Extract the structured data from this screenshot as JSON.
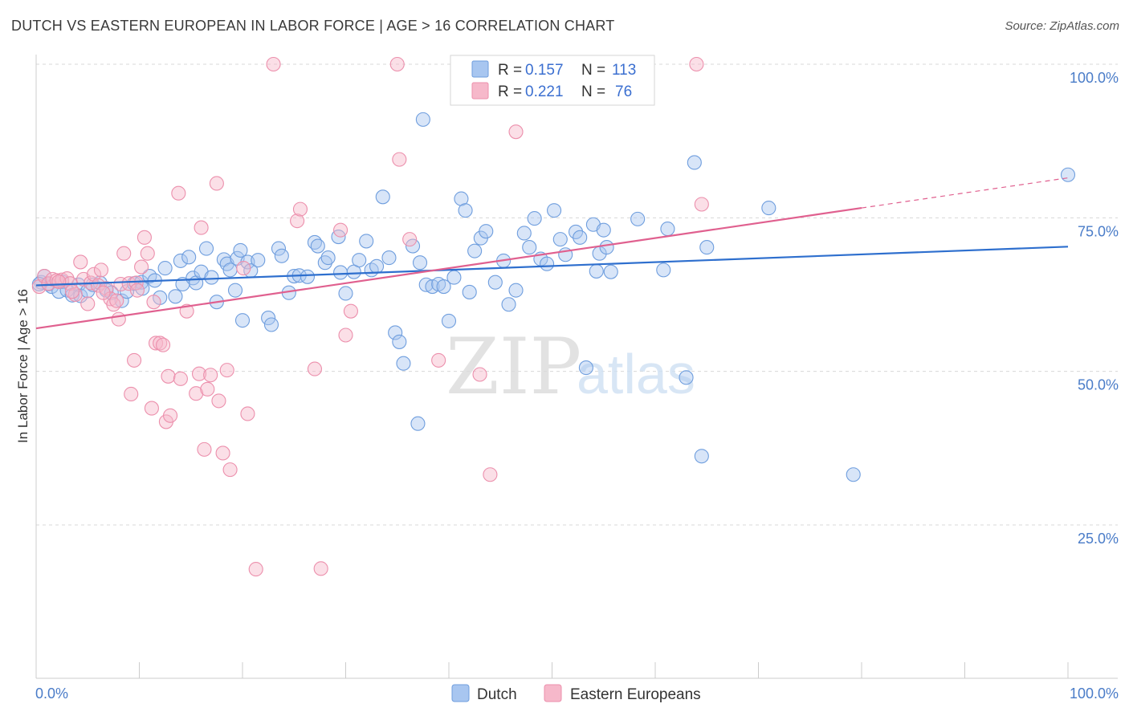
{
  "header": {
    "title": "DUTCH VS EASTERN EUROPEAN IN LABOR FORCE | AGE > 16 CORRELATION CHART",
    "source": "Source: ZipAtlas.com"
  },
  "watermark": {
    "zip": "ZIP",
    "atlas": "atlas"
  },
  "colors": {
    "dutch_fill": "#a8c6f0",
    "dutch_stroke": "#6f9ede",
    "dutch_line": "#2e6fce",
    "ee_fill": "#f6b8ca",
    "ee_stroke": "#ec8fac",
    "ee_line": "#e0608f",
    "tick_label": "#4a7cc8",
    "grid": "#d8d8d8"
  },
  "legend": {
    "r_label": "R =",
    "n_label": "N =",
    "rows": [
      {
        "series": "Dutch",
        "r": "0.157",
        "n": "113"
      },
      {
        "series": "Eastern Europeans",
        "r": "0.221",
        "n": "76"
      }
    ]
  },
  "chart_data": {
    "type": "scatter",
    "title": "DUTCH VS EASTERN EUROPEAN IN LABOR FORCE | AGE > 16 CORRELATION CHART",
    "xlabel": "",
    "ylabel": "In Labor Force | Age > 16",
    "xlim": [
      0,
      100
    ],
    "ylim": [
      0,
      102
    ],
    "x_tick_labels": [
      "0.0%",
      "100.0%"
    ],
    "y_ticks": [
      {
        "value": 100,
        "label": "100.0%"
      },
      {
        "value": 75,
        "label": "75.0%"
      },
      {
        "value": 50,
        "label": "50.0%"
      },
      {
        "value": 25,
        "label": "25.0%"
      }
    ],
    "grid": true,
    "legend_position": "bottom-center",
    "series": [
      {
        "name": "Dutch",
        "regression": {
          "x0": 0,
          "y0": 64.0,
          "x1": 100,
          "y1": 70.3,
          "dashed_from": null
        },
        "points": [
          [
            0.5,
            64.5
          ],
          [
            0.8,
            65.5
          ],
          [
            1.2,
            64.2
          ],
          [
            1.5,
            63.8
          ],
          [
            2.2,
            63.0
          ],
          [
            2.5,
            64.6
          ],
          [
            3.0,
            63.2
          ],
          [
            3.5,
            62.4
          ],
          [
            4.1,
            64.1
          ],
          [
            4.3,
            62.3
          ],
          [
            5.0,
            63.1
          ],
          [
            5.5,
            64.1
          ],
          [
            6.2,
            64.4
          ],
          [
            6.8,
            63.2
          ],
          [
            7.3,
            62.8
          ],
          [
            8.3,
            61.5
          ],
          [
            8.8,
            63.0
          ],
          [
            9.5,
            64.3
          ],
          [
            10.2,
            64.5
          ],
          [
            10.3,
            63.5
          ],
          [
            11.0,
            65.5
          ],
          [
            11.5,
            64.8
          ],
          [
            12.0,
            62.0
          ],
          [
            12.5,
            66.8
          ],
          [
            13.5,
            62.2
          ],
          [
            14.0,
            68.0
          ],
          [
            14.2,
            64.2
          ],
          [
            14.8,
            68.6
          ],
          [
            15.2,
            65.2
          ],
          [
            15.5,
            64.4
          ],
          [
            16.0,
            66.2
          ],
          [
            16.5,
            70.0
          ],
          [
            17.0,
            65.3
          ],
          [
            17.5,
            61.3
          ],
          [
            18.2,
            68.2
          ],
          [
            18.5,
            67.5
          ],
          [
            18.8,
            66.5
          ],
          [
            19.3,
            63.2
          ],
          [
            19.5,
            68.4
          ],
          [
            19.8,
            69.7
          ],
          [
            20.0,
            58.3
          ],
          [
            20.5,
            67.8
          ],
          [
            20.8,
            66.4
          ],
          [
            21.5,
            68.1
          ],
          [
            22.5,
            58.7
          ],
          [
            22.8,
            57.6
          ],
          [
            23.5,
            70.0
          ],
          [
            23.8,
            68.8
          ],
          [
            24.5,
            62.8
          ],
          [
            25.0,
            65.5
          ],
          [
            25.5,
            65.6
          ],
          [
            26.3,
            65.4
          ],
          [
            27.0,
            71.0
          ],
          [
            27.3,
            70.4
          ],
          [
            28.0,
            67.7
          ],
          [
            28.3,
            68.5
          ],
          [
            29.3,
            71.9
          ],
          [
            29.5,
            66.1
          ],
          [
            30.0,
            62.7
          ],
          [
            30.8,
            66.2
          ],
          [
            31.3,
            68.1
          ],
          [
            32.0,
            71.2
          ],
          [
            32.5,
            66.5
          ],
          [
            33.0,
            67.1
          ],
          [
            33.6,
            78.4
          ],
          [
            34.2,
            68.5
          ],
          [
            34.8,
            56.3
          ],
          [
            35.2,
            54.8
          ],
          [
            35.6,
            51.3
          ],
          [
            36.5,
            70.4
          ],
          [
            37.0,
            41.5
          ],
          [
            37.2,
            67.7
          ],
          [
            37.8,
            64.1
          ],
          [
            38.4,
            63.8
          ],
          [
            39.0,
            64.2
          ],
          [
            39.5,
            63.8
          ],
          [
            37.5,
            91.0
          ],
          [
            40.0,
            58.2
          ],
          [
            40.5,
            65.3
          ],
          [
            41.2,
            78.1
          ],
          [
            41.6,
            76.2
          ],
          [
            42.0,
            62.9
          ],
          [
            42.5,
            69.6
          ],
          [
            43.1,
            71.7
          ],
          [
            43.6,
            72.8
          ],
          [
            44.5,
            64.5
          ],
          [
            45.3,
            68.0
          ],
          [
            45.8,
            60.9
          ],
          [
            46.5,
            63.2
          ],
          [
            47.3,
            72.5
          ],
          [
            47.8,
            70.2
          ],
          [
            48.3,
            74.9
          ],
          [
            48.9,
            68.3
          ],
          [
            49.5,
            67.5
          ],
          [
            50.2,
            76.2
          ],
          [
            50.8,
            71.5
          ],
          [
            51.3,
            69.0
          ],
          [
            52.3,
            72.7
          ],
          [
            52.7,
            71.8
          ],
          [
            53.3,
            50.6
          ],
          [
            54.0,
            73.9
          ],
          [
            54.3,
            66.3
          ],
          [
            54.6,
            69.2
          ],
          [
            55.0,
            73.0
          ],
          [
            55.3,
            70.2
          ],
          [
            55.7,
            66.2
          ],
          [
            58.3,
            74.8
          ],
          [
            60.8,
            66.5
          ],
          [
            61.2,
            73.2
          ],
          [
            63.0,
            49.0
          ],
          [
            63.8,
            84.0
          ],
          [
            64.5,
            36.2
          ],
          [
            65.0,
            70.2
          ],
          [
            71.0,
            76.6
          ],
          [
            79.2,
            33.2
          ],
          [
            100.0,
            82.0
          ],
          [
            0.3,
            64.2
          ]
        ]
      },
      {
        "name": "Eastern Europeans",
        "regression": {
          "x0": 0,
          "y0": 57.0,
          "x1": 100,
          "y1": 81.5,
          "dashed_from": 80
        },
        "points": [
          [
            0.3,
            63.8
          ],
          [
            0.8,
            65.5
          ],
          [
            1.2,
            64.3
          ],
          [
            1.6,
            65.0
          ],
          [
            2.0,
            64.8
          ],
          [
            2.5,
            64.9
          ],
          [
            3.0,
            65.1
          ],
          [
            3.3,
            64.3
          ],
          [
            3.8,
            62.5
          ],
          [
            4.3,
            67.8
          ],
          [
            4.6,
            65.0
          ],
          [
            5.0,
            61.0
          ],
          [
            5.3,
            64.4
          ],
          [
            5.6,
            65.8
          ],
          [
            6.0,
            64.0
          ],
          [
            6.3,
            66.5
          ],
          [
            6.8,
            63.5
          ],
          [
            7.2,
            61.8
          ],
          [
            7.5,
            60.9
          ],
          [
            7.8,
            61.5
          ],
          [
            8.0,
            58.5
          ],
          [
            8.2,
            64.2
          ],
          [
            8.5,
            69.2
          ],
          [
            9.0,
            64.3
          ],
          [
            9.2,
            46.3
          ],
          [
            9.5,
            51.8
          ],
          [
            9.7,
            64.4
          ],
          [
            10.2,
            67.0
          ],
          [
            10.5,
            71.8
          ],
          [
            10.8,
            69.2
          ],
          [
            11.2,
            44.0
          ],
          [
            11.4,
            61.3
          ],
          [
            11.6,
            54.6
          ],
          [
            12.0,
            54.6
          ],
          [
            12.3,
            54.3
          ],
          [
            12.6,
            41.8
          ],
          [
            12.8,
            49.2
          ],
          [
            13.0,
            42.8
          ],
          [
            13.8,
            79.0
          ],
          [
            14.0,
            48.8
          ],
          [
            14.6,
            59.8
          ],
          [
            15.5,
            46.4
          ],
          [
            15.8,
            49.6
          ],
          [
            16.0,
            73.4
          ],
          [
            16.3,
            37.3
          ],
          [
            16.6,
            47.1
          ],
          [
            16.9,
            49.4
          ],
          [
            17.5,
            80.6
          ],
          [
            17.7,
            45.2
          ],
          [
            18.1,
            36.7
          ],
          [
            18.5,
            50.2
          ],
          [
            18.8,
            34.0
          ],
          [
            20.1,
            66.8
          ],
          [
            20.5,
            43.1
          ],
          [
            21.3,
            17.8
          ],
          [
            23.0,
            100.0
          ],
          [
            25.3,
            74.5
          ],
          [
            25.6,
            76.4
          ],
          [
            27.0,
            50.4
          ],
          [
            27.6,
            17.9
          ],
          [
            29.5,
            73.0
          ],
          [
            30.0,
            55.9
          ],
          [
            30.5,
            59.8
          ],
          [
            35.0,
            100.0
          ],
          [
            35.2,
            84.5
          ],
          [
            36.2,
            71.5
          ],
          [
            39.0,
            51.8
          ],
          [
            43.0,
            49.5
          ],
          [
            44.0,
            33.2
          ],
          [
            46.5,
            89.0
          ],
          [
            64.0,
            100.0
          ],
          [
            64.5,
            77.2
          ],
          [
            3.5,
            63.0
          ],
          [
            9.8,
            63.2
          ],
          [
            6.5,
            62.8
          ],
          [
            2.2,
            64.6
          ]
        ]
      }
    ]
  }
}
